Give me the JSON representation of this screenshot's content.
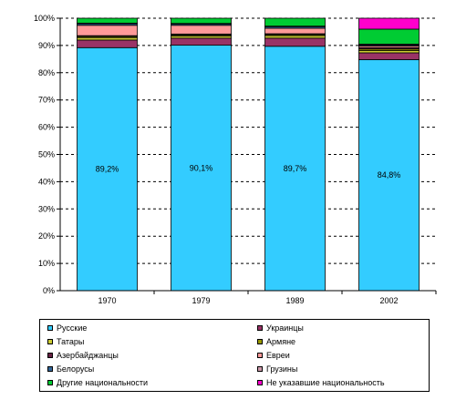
{
  "chart_data": {
    "type": "bar",
    "stacked": true,
    "percent": true,
    "title": "",
    "xlabel": "",
    "ylabel": "",
    "ylim": [
      0,
      100
    ],
    "yticks": [
      "0%",
      "10%",
      "20%",
      "30%",
      "40%",
      "50%",
      "60%",
      "70%",
      "80%",
      "90%",
      "100%"
    ],
    "categories": [
      "1970",
      "1979",
      "1989",
      "2002"
    ],
    "grid": "horizontal dashed",
    "legend_position": "bottom",
    "series": [
      {
        "name": "Русские",
        "color": "#33ccff",
        "values": [
          89.2,
          90.1,
          89.7,
          84.8
        ],
        "labels": [
          "89,2%",
          "90,1%",
          "89,7%",
          "84,8%"
        ]
      },
      {
        "name": "Украинцы",
        "color": "#993366",
        "values": [
          2.8,
          2.6,
          3.0,
          2.5
        ]
      },
      {
        "name": "Татары",
        "color": "#cccc33",
        "values": [
          0.9,
          0.8,
          0.9,
          0.8
        ]
      },
      {
        "name": "Армяне",
        "color": "#999900",
        "values": [
          0.4,
          0.4,
          0.4,
          0.6
        ]
      },
      {
        "name": "Азербайджанцы",
        "color": "#662244",
        "values": [
          0.3,
          0.3,
          0.3,
          0.5
        ]
      },
      {
        "name": "Евреи",
        "color": "#ff9999",
        "values": [
          3.8,
          3.2,
          2.0,
          0.6
        ]
      },
      {
        "name": "Белорусы",
        "color": "#336699",
        "values": [
          0.6,
          0.5,
          0.6,
          0.4
        ]
      },
      {
        "name": "Грузины",
        "color": "#cc99aa",
        "values": [
          0.2,
          0.2,
          0.2,
          0.3
        ]
      },
      {
        "name": "Другие национальности",
        "color": "#00cc33",
        "values": [
          1.8,
          1.9,
          2.9,
          5.5
        ]
      },
      {
        "name": "Не указавшие национальность",
        "color": "#ff00cc",
        "values": [
          0.0,
          0.0,
          0.0,
          4.0
        ]
      }
    ]
  }
}
